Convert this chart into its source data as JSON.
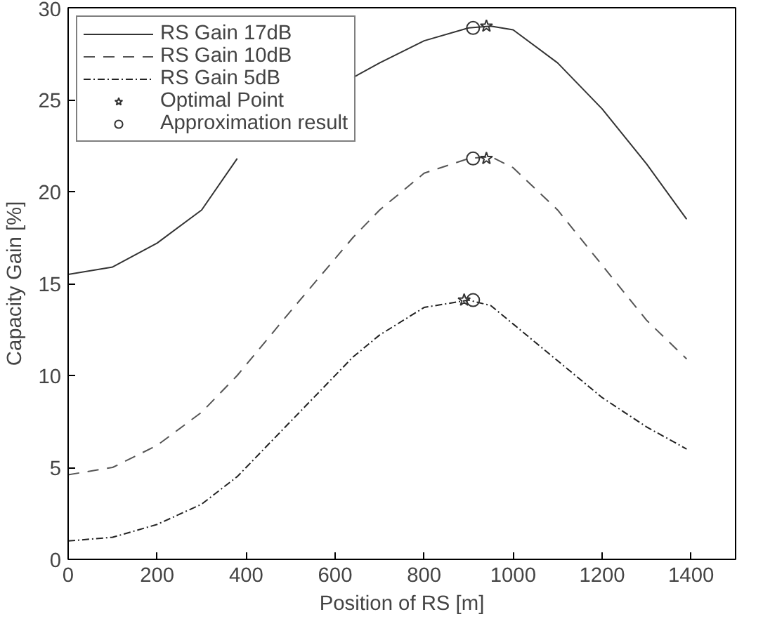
{
  "chart_data": {
    "type": "line",
    "xlabel": "Position of RS [m]",
    "ylabel": "Capacity Gain [%]",
    "xlim": [
      0,
      1500
    ],
    "xticks": [
      0,
      200,
      400,
      600,
      800,
      1000,
      1200,
      1400
    ],
    "ylim": [
      0,
      30
    ],
    "yticks": [
      0,
      5,
      10,
      15,
      20,
      25,
      30
    ],
    "grid": false,
    "legend": "top left",
    "x": [
      0,
      100,
      200,
      300,
      380,
      500,
      640,
      700,
      800,
      900,
      950,
      1000,
      1100,
      1200,
      1300,
      1390
    ],
    "series": [
      {
        "name": "RS Gain 17dB",
        "color": "#333333",
        "line_style": "solid",
        "values": [
          15.5,
          15.9,
          17.2,
          19.0,
          21.8,
          null,
          26.2,
          27.0,
          28.2,
          28.9,
          29.0,
          28.8,
          27.0,
          24.5,
          21.5,
          18.5
        ]
      },
      {
        "name": "RS Gain 10dB",
        "color": "#555555",
        "line_style": "dashed",
        "values": [
          4.6,
          5.0,
          6.2,
          8.0,
          10.0,
          13.5,
          17.5,
          19.0,
          21.0,
          21.8,
          21.9,
          21.3,
          19.0,
          16.0,
          13.0,
          10.9
        ]
      },
      {
        "name": "RS Gain 5dB",
        "color": "#222222",
        "line_style": "dashdot",
        "values": [
          1.0,
          1.2,
          1.9,
          3.0,
          4.5,
          7.5,
          11.0,
          12.2,
          13.7,
          14.1,
          13.8,
          12.8,
          10.8,
          8.8,
          7.2,
          6.0
        ]
      },
      {
        "name": "Optimal Point",
        "type": "scatter",
        "marker": "star",
        "color": "#333333",
        "x": [
          940,
          940,
          890
        ],
        "values": [
          29.0,
          21.8,
          14.1
        ]
      },
      {
        "name": "Approximation result",
        "type": "scatter",
        "marker": "circle",
        "color": "#333333",
        "x": [
          910,
          910,
          910
        ],
        "values": [
          28.9,
          21.8,
          14.1
        ]
      }
    ]
  }
}
